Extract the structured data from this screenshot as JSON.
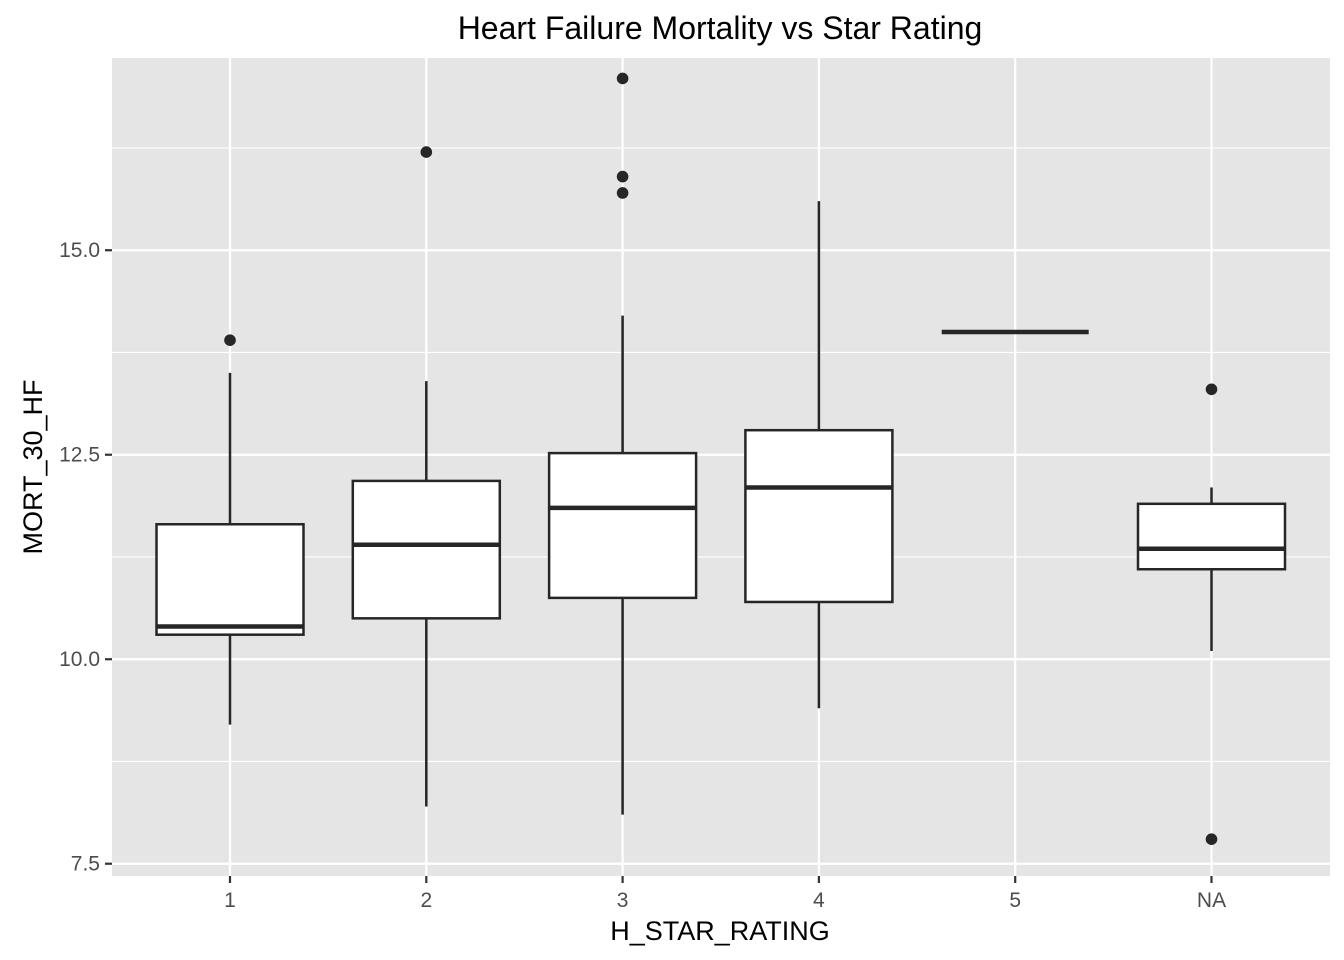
{
  "chart_data": {
    "type": "boxplot",
    "title": "Heart Failure Mortality vs Star Rating",
    "xlabel": "H_STAR_RATING",
    "ylabel": "MORT_30_HF",
    "categories": [
      "1",
      "2",
      "3",
      "4",
      "5",
      "NA"
    ],
    "ylim": [
      7.35,
      17.35
    ],
    "yticks": [
      7.5,
      10.0,
      12.5,
      15.0
    ],
    "ytick_labels": [
      "7.5",
      "10.0",
      "12.5",
      "15.0"
    ],
    "grid": true,
    "colors": {
      "panel_background": "#e5e5e5",
      "grid": "#ffffff",
      "box_fill": "#ffffff",
      "box_line": "#262626",
      "outlier": "#262626"
    },
    "boxes": [
      {
        "category": "1",
        "whisker_low": 9.2,
        "q1": 10.3,
        "median": 10.4,
        "q3": 11.65,
        "whisker_high": 13.5,
        "outliers": [
          13.9
        ]
      },
      {
        "category": "2",
        "whisker_low": 8.2,
        "q1": 10.5,
        "median": 11.4,
        "q3": 12.18,
        "whisker_high": 13.4,
        "outliers": [
          16.2
        ]
      },
      {
        "category": "3",
        "whisker_low": 8.1,
        "q1": 10.75,
        "median": 11.85,
        "q3": 12.52,
        "whisker_high": 14.2,
        "outliers": [
          15.7,
          15.9,
          17.1
        ]
      },
      {
        "category": "4",
        "whisker_low": 9.4,
        "q1": 10.7,
        "median": 12.1,
        "q3": 12.8,
        "whisker_high": 15.6,
        "outliers": []
      },
      {
        "category": "5",
        "whisker_low": 14.0,
        "q1": 14.0,
        "median": 14.0,
        "q3": 14.0,
        "whisker_high": 14.0,
        "outliers": []
      },
      {
        "category": "NA",
        "whisker_low": 10.1,
        "q1": 11.1,
        "median": 11.35,
        "q3": 11.9,
        "whisker_high": 12.1,
        "outliers": [
          7.8,
          13.3
        ]
      }
    ]
  }
}
